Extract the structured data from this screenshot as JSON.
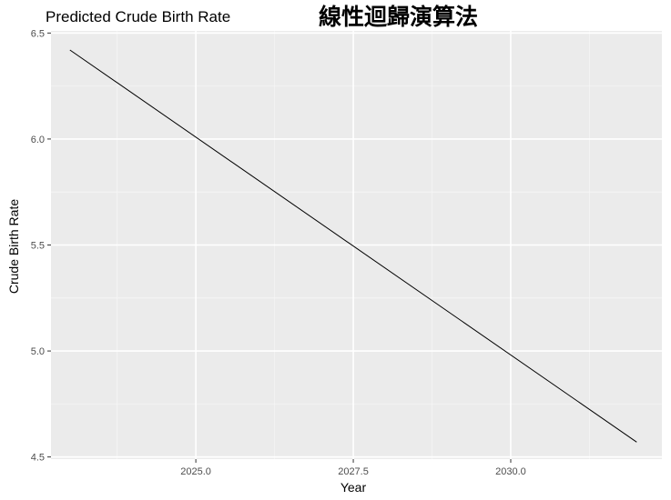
{
  "colors": {
    "panel_background": "#ebebeb",
    "grid_major": "#ffffff",
    "grid_minor": "#f5f5f5",
    "line": "#000000",
    "tick_text": "#4d4d4d"
  },
  "chart_data": {
    "type": "line",
    "title": "Predicted Crude Birth Rate",
    "subtitle": "線性迴歸演算法",
    "xlabel": "Year",
    "ylabel": "Crude Birth Rate",
    "xlim": [
      2022.7,
      2032.4
    ],
    "ylim": [
      4.49,
      6.51
    ],
    "x_ticks": [
      2025.0,
      2027.5,
      2030.0
    ],
    "x_tick_labels": [
      "2025.0",
      "2027.5",
      "2030.0"
    ],
    "y_ticks": [
      4.5,
      5.0,
      5.5,
      6.0,
      6.5
    ],
    "y_tick_labels": [
      "4.5",
      "5.0",
      "5.5",
      "6.0",
      "6.5"
    ],
    "grid": true,
    "legend": "none",
    "series": [
      {
        "x": [
          2023,
          2032
        ],
        "y": [
          6.42,
          4.57
        ]
      }
    ]
  }
}
